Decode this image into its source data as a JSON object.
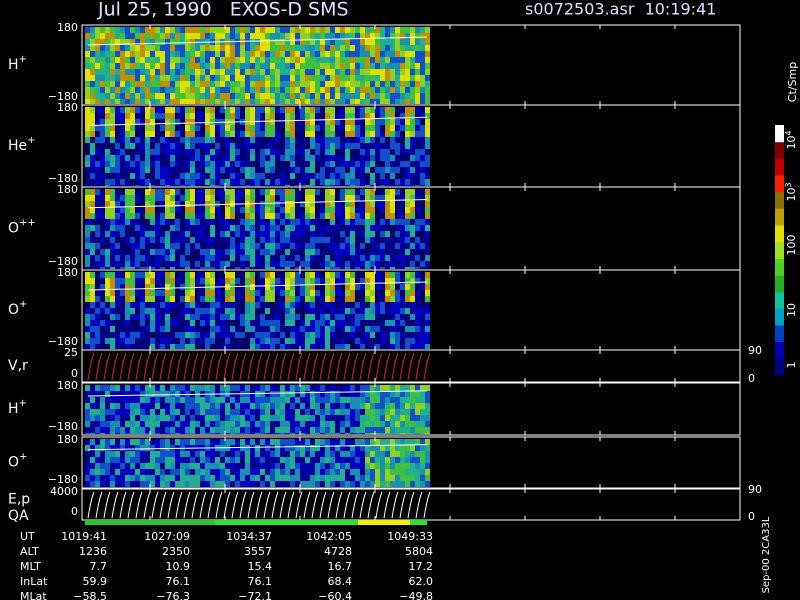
{
  "header": {
    "title": "Jul 25, 1990   EXOS-D SMS",
    "file": "s0072503.asr  10:19:41"
  },
  "panels": [
    {
      "label": "H",
      "sup": "+",
      "top": "180",
      "bottom": "−180"
    },
    {
      "label": "He",
      "sup": "+",
      "top": "180",
      "bottom": "−180"
    },
    {
      "label": "O",
      "sup": "++",
      "top": "180",
      "bottom": "−180"
    },
    {
      "label": "O",
      "sup": "+",
      "top": "180",
      "bottom": "−180"
    },
    {
      "label": "V,r",
      "top": "25",
      "bottom": "0",
      "right_top": "90",
      "right_bottom": "0"
    },
    {
      "label": "H",
      "sup": "+",
      "top": "180",
      "bottom": "−180"
    },
    {
      "label": "O",
      "sup": "+",
      "top": "180",
      "bottom": "−180"
    },
    {
      "label": "E,p",
      "top": "4000",
      "bottom": "0",
      "right_top": "90",
      "right_bottom": "0"
    }
  ],
  "qa_label": "QA",
  "colorbar": {
    "unit": "Ct/Smp",
    "ticks": [
      {
        "base": "10",
        "exp": "4"
      },
      {
        "base": "10",
        "exp": "3"
      },
      "100",
      "10",
      "1"
    ]
  },
  "footer": {
    "rows": [
      {
        "label": "UT",
        "values": [
          "1019:41",
          "1027:09",
          "1034:37",
          "1042:05",
          "1049:33"
        ]
      },
      {
        "label": "ALT",
        "values": [
          "1236",
          "2350",
          "3557",
          "4728",
          "5804"
        ]
      },
      {
        "label": "MLT",
        "values": [
          "7.7",
          "10.9",
          "15.4",
          "16.7",
          "17.2"
        ]
      },
      {
        "label": "InLat",
        "values": [
          "59.9",
          "76.1",
          "76.1",
          "68.4",
          "62.0"
        ]
      },
      {
        "label": "MLat",
        "values": [
          "−58.5",
          "−76.3",
          "−72.1",
          "−60.4",
          "−49.8"
        ]
      }
    ]
  },
  "side_note": "Sep-00 2CA33L"
}
